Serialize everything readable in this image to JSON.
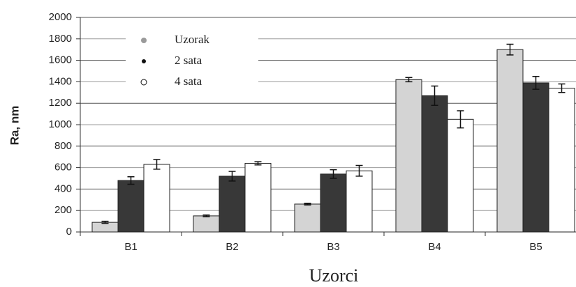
{
  "chart_data": {
    "type": "bar",
    "y_label": "Ra, nm",
    "x_label": "Uzorci",
    "categories": [
      "B1",
      "B2",
      "B3",
      "B4",
      "B5"
    ],
    "series": [
      {
        "name": "Uzorak",
        "color": "#d4d4d4",
        "values": [
          90,
          150,
          260,
          1420,
          1700
        ],
        "errors": [
          10,
          8,
          8,
          20,
          50
        ]
      },
      {
        "name": "2 sata",
        "color": "#383838",
        "values": [
          480,
          520,
          540,
          1270,
          1390
        ],
        "errors": [
          35,
          45,
          40,
          90,
          60
        ]
      },
      {
        "name": "4 sata",
        "color": "#ffffff",
        "values": [
          630,
          640,
          570,
          1050,
          1340
        ],
        "errors": [
          45,
          15,
          50,
          80,
          40
        ]
      }
    ],
    "ylim": [
      0,
      2000
    ],
    "yticks": [
      0,
      200,
      400,
      600,
      800,
      1000,
      1200,
      1400,
      1600,
      1800,
      2000
    ],
    "grid": true
  }
}
